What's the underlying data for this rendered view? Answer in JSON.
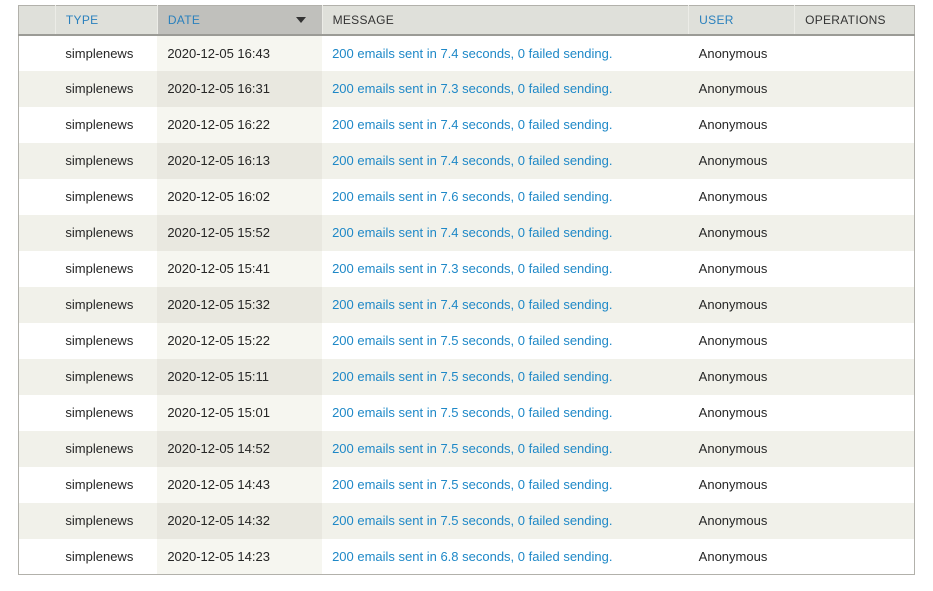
{
  "table": {
    "sort": {
      "column": "DATE",
      "direction": "descending"
    },
    "sort_icon": "sort-descending-arrow",
    "columns": [
      {
        "key": "icon",
        "label": "",
        "sortable": false
      },
      {
        "key": "type",
        "label": "TYPE",
        "sortable": true
      },
      {
        "key": "date",
        "label": "DATE",
        "sortable": true
      },
      {
        "key": "message",
        "label": "MESSAGE",
        "sortable": false
      },
      {
        "key": "user",
        "label": "USER",
        "sortable": true
      },
      {
        "key": "operations",
        "label": "OPERATIONS",
        "sortable": false
      }
    ],
    "rows": [
      {
        "type": "simplenews",
        "date": "2020-12-05 16:43",
        "message": "200 emails sent in 7.4 seconds, 0 failed sending.",
        "user": "Anonymous",
        "operations": ""
      },
      {
        "type": "simplenews",
        "date": "2020-12-05 16:31",
        "message": "200 emails sent in 7.3 seconds, 0 failed sending.",
        "user": "Anonymous",
        "operations": ""
      },
      {
        "type": "simplenews",
        "date": "2020-12-05 16:22",
        "message": "200 emails sent in 7.4 seconds, 0 failed sending.",
        "user": "Anonymous",
        "operations": ""
      },
      {
        "type": "simplenews",
        "date": "2020-12-05 16:13",
        "message": "200 emails sent in 7.4 seconds, 0 failed sending.",
        "user": "Anonymous",
        "operations": ""
      },
      {
        "type": "simplenews",
        "date": "2020-12-05 16:02",
        "message": "200 emails sent in 7.6 seconds, 0 failed sending.",
        "user": "Anonymous",
        "operations": ""
      },
      {
        "type": "simplenews",
        "date": "2020-12-05 15:52",
        "message": "200 emails sent in 7.4 seconds, 0 failed sending.",
        "user": "Anonymous",
        "operations": ""
      },
      {
        "type": "simplenews",
        "date": "2020-12-05 15:41",
        "message": "200 emails sent in 7.3 seconds, 0 failed sending.",
        "user": "Anonymous",
        "operations": ""
      },
      {
        "type": "simplenews",
        "date": "2020-12-05 15:32",
        "message": "200 emails sent in 7.4 seconds, 0 failed sending.",
        "user": "Anonymous",
        "operations": ""
      },
      {
        "type": "simplenews",
        "date": "2020-12-05 15:22",
        "message": "200 emails sent in 7.5 seconds, 0 failed sending.",
        "user": "Anonymous",
        "operations": ""
      },
      {
        "type": "simplenews",
        "date": "2020-12-05 15:11",
        "message": "200 emails sent in 7.5 seconds, 0 failed sending.",
        "user": "Anonymous",
        "operations": ""
      },
      {
        "type": "simplenews",
        "date": "2020-12-05 15:01",
        "message": "200 emails sent in 7.5 seconds, 0 failed sending.",
        "user": "Anonymous",
        "operations": ""
      },
      {
        "type": "simplenews",
        "date": "2020-12-05 14:52",
        "message": "200 emails sent in 7.5 seconds, 0 failed sending.",
        "user": "Anonymous",
        "operations": ""
      },
      {
        "type": "simplenews",
        "date": "2020-12-05 14:43",
        "message": "200 emails sent in 7.5 seconds, 0 failed sending.",
        "user": "Anonymous",
        "operations": ""
      },
      {
        "type": "simplenews",
        "date": "2020-12-05 14:32",
        "message": "200 emails sent in 7.5 seconds, 0 failed sending.",
        "user": "Anonymous",
        "operations": ""
      },
      {
        "type": "simplenews",
        "date": "2020-12-05 14:23",
        "message": "200 emails sent in 6.8 seconds, 0 failed sending.",
        "user": "Anonymous",
        "operations": ""
      }
    ]
  },
  "colors": {
    "header_bg": "#dfe0da",
    "header_active_bg": "#c0c0bc",
    "header_bottom_border": "#9b9b96",
    "table_border": "#b2b1ab",
    "stripe_bg": "#f1f1ea",
    "active_col_odd": "#f6f6f0",
    "active_col_even": "#e9e8e0",
    "link_header": "#2a80bd",
    "link_message": "#1e88c7",
    "body_text": "#262626",
    "header_text": "#333333"
  }
}
